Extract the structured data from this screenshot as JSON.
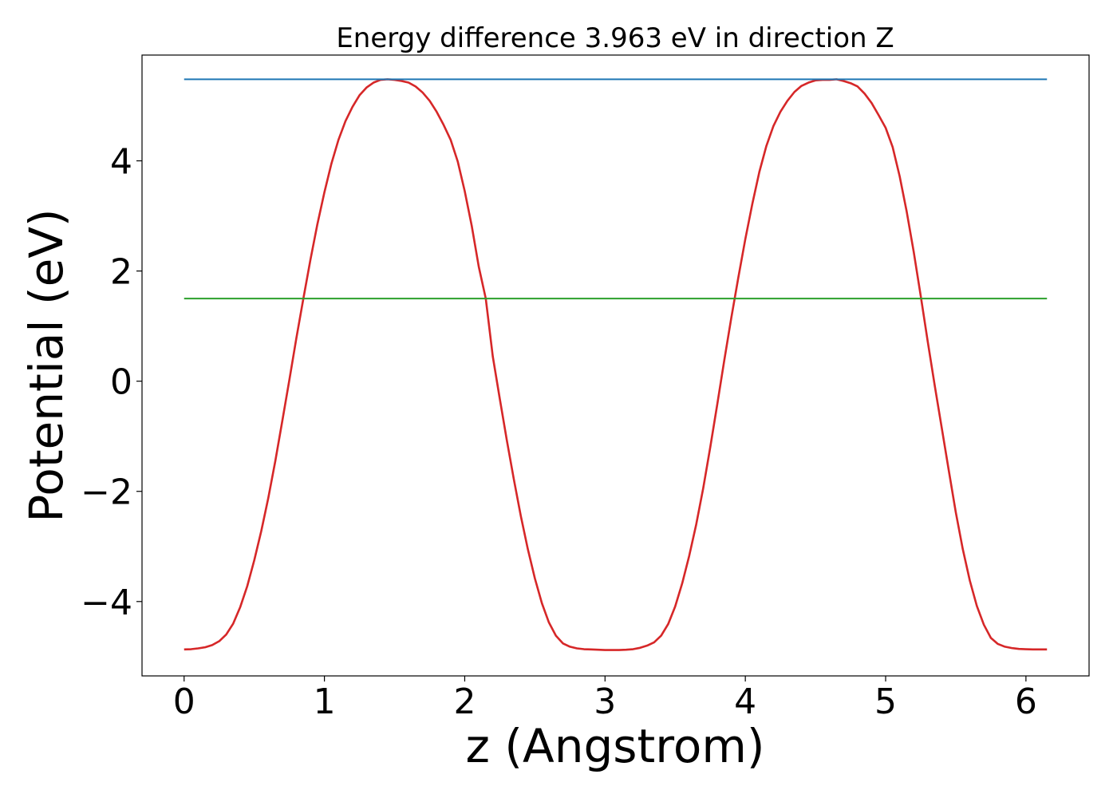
{
  "chart_data": {
    "type": "line",
    "title": "Energy difference 3.963 eV in direction Z",
    "xlabel": "z (Angstrom)",
    "ylabel": "Potential (eV)",
    "xlim": [
      -0.3,
      6.45
    ],
    "ylim": [
      -5.35,
      5.92
    ],
    "xticks": [
      0,
      1,
      2,
      3,
      4,
      5,
      6
    ],
    "xtick_labels": [
      "0",
      "1",
      "2",
      "3",
      "4",
      "5",
      "6"
    ],
    "yticks": [
      -4,
      -2,
      0,
      2,
      4
    ],
    "ytick_labels": [
      "−4",
      "−2",
      "0",
      "2",
      "4"
    ],
    "grid": false,
    "series": [
      {
        "color": "#d62728",
        "x": [
          0.0,
          0.05,
          0.1,
          0.15,
          0.2,
          0.25,
          0.3,
          0.35,
          0.4,
          0.45,
          0.5,
          0.55,
          0.6,
          0.65,
          0.7,
          0.75,
          0.8,
          0.85,
          0.9,
          0.95,
          1.0,
          1.05,
          1.1,
          1.15,
          1.2,
          1.25,
          1.3,
          1.35,
          1.4,
          1.45,
          1.5,
          1.55,
          1.6,
          1.65,
          1.7,
          1.75,
          1.8,
          1.85,
          1.9,
          1.95,
          2.0,
          2.05,
          2.1,
          2.15,
          2.2,
          2.25,
          2.3,
          2.35,
          2.4,
          2.45,
          2.5,
          2.55,
          2.6,
          2.65,
          2.7,
          2.75,
          2.8,
          2.85,
          2.9,
          2.95,
          3.0,
          3.05,
          3.1,
          3.15,
          3.2,
          3.25,
          3.3,
          3.35,
          3.4,
          3.45,
          3.5,
          3.55,
          3.6,
          3.65,
          3.7,
          3.75,
          3.8,
          3.85,
          3.9,
          3.95,
          4.0,
          4.05,
          4.1,
          4.15,
          4.2,
          4.25,
          4.3,
          4.35,
          4.4,
          4.45,
          4.5,
          4.55,
          4.6,
          4.65,
          4.7,
          4.75,
          4.8,
          4.85,
          4.9,
          4.95,
          5.0,
          5.05,
          5.1,
          5.15,
          5.2,
          5.25,
          5.3,
          5.35,
          5.4,
          5.45,
          5.5,
          5.55,
          5.6,
          5.65,
          5.7,
          5.75,
          5.8,
          5.85,
          5.9,
          5.95,
          6.0,
          6.05,
          6.1,
          6.15
        ],
        "y": [
          -4.87,
          -4.865,
          -4.85,
          -4.83,
          -4.79,
          -4.72,
          -4.6,
          -4.4,
          -4.1,
          -3.72,
          -3.25,
          -2.72,
          -2.12,
          -1.45,
          -0.72,
          0.02,
          0.78,
          1.5,
          2.2,
          2.85,
          3.43,
          3.95,
          4.38,
          4.72,
          4.98,
          5.19,
          5.33,
          5.42,
          5.47,
          5.48,
          5.47,
          5.45,
          5.42,
          5.35,
          5.24,
          5.09,
          4.89,
          4.65,
          4.38,
          3.99,
          3.45,
          2.82,
          2.08,
          1.5,
          0.45,
          -0.32,
          -1.07,
          -1.78,
          -2.45,
          -3.05,
          -3.58,
          -4.03,
          -4.38,
          -4.62,
          -4.76,
          -4.82,
          -4.85,
          -4.865,
          -4.87,
          -4.875,
          -4.88,
          -4.88,
          -4.88,
          -4.875,
          -4.865,
          -4.84,
          -4.8,
          -4.74,
          -4.62,
          -4.41,
          -4.09,
          -3.67,
          -3.17,
          -2.6,
          -1.94,
          -1.2,
          -0.42,
          0.38,
          1.15,
          1.88,
          2.58,
          3.22,
          3.8,
          4.27,
          4.63,
          4.89,
          5.09,
          5.25,
          5.36,
          5.42,
          5.46,
          5.47,
          5.47,
          5.48,
          5.45,
          5.41,
          5.35,
          5.22,
          5.05,
          4.83,
          4.6,
          4.25,
          3.72,
          3.08,
          2.35,
          1.55,
          0.72,
          -0.08,
          -0.85,
          -1.62,
          -2.38,
          -3.05,
          -3.62,
          -4.08,
          -4.42,
          -4.66,
          -4.77,
          -4.82,
          -4.845,
          -4.86,
          -4.865,
          -4.87,
          -4.87,
          -4.87
        ]
      },
      {
        "color": "#1f77b4",
        "x": [
          0.0,
          6.15
        ],
        "y": [
          5.48,
          5.48
        ]
      },
      {
        "color": "#2ca02c",
        "x": [
          0.0,
          6.15
        ],
        "y": [
          1.5,
          1.5
        ]
      }
    ]
  }
}
